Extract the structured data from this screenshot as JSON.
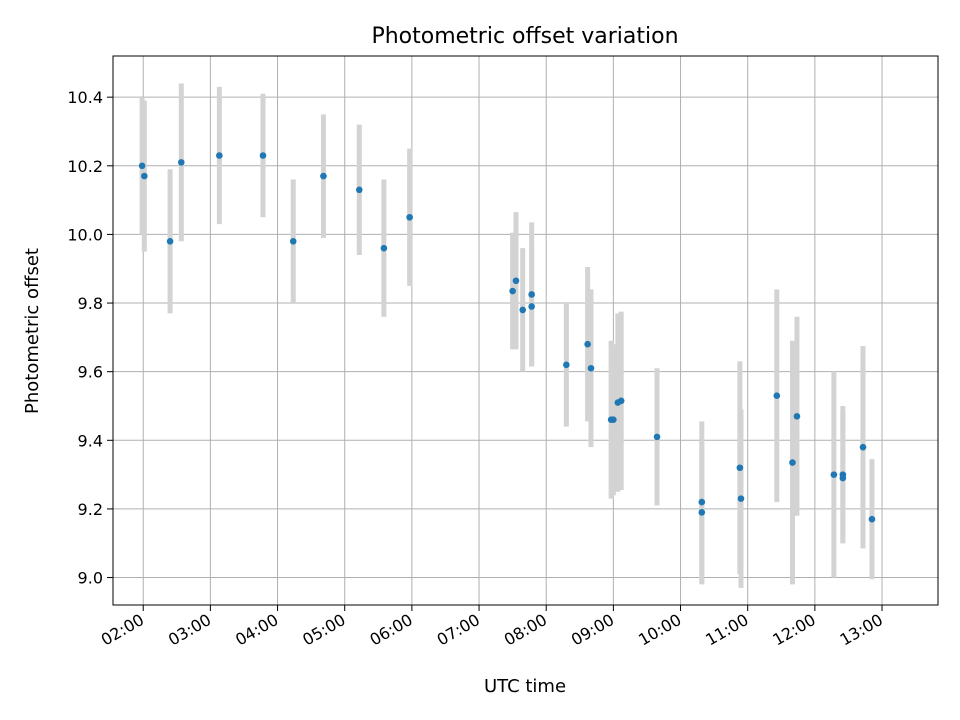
{
  "chart_data": {
    "type": "scatter",
    "title": "Photometric offset variation",
    "xlabel": "UTC time",
    "ylabel": "Photometric offset",
    "xlim": [
      "01:33",
      "13:50"
    ],
    "ylim": [
      8.92,
      10.52
    ],
    "grid": true,
    "x_ticks": [
      "02:00",
      "03:00",
      "04:00",
      "05:00",
      "06:00",
      "07:00",
      "08:00",
      "09:00",
      "10:00",
      "11:00",
      "12:00",
      "13:00"
    ],
    "y_ticks": [
      "9.0",
      "9.2",
      "9.4",
      "9.6",
      "9.8",
      "10.0",
      "10.2",
      "10.4"
    ],
    "marker_color": "#1f77b4",
    "errorbar_color": "#d3d3d3",
    "points": [
      {
        "t": "01:59",
        "y": 10.2,
        "err": 0.2
      },
      {
        "t": "02:01",
        "y": 10.17,
        "err": 0.22
      },
      {
        "t": "02:24",
        "y": 9.98,
        "err": 0.21
      },
      {
        "t": "02:34",
        "y": 10.21,
        "err": 0.23
      },
      {
        "t": "03:08",
        "y": 10.23,
        "err": 0.2
      },
      {
        "t": "03:47",
        "y": 10.23,
        "err": 0.18
      },
      {
        "t": "04:14",
        "y": 9.98,
        "err": 0.18
      },
      {
        "t": "04:41",
        "y": 10.17,
        "err": 0.18
      },
      {
        "t": "05:13",
        "y": 10.13,
        "err": 0.19
      },
      {
        "t": "05:35",
        "y": 9.96,
        "err": 0.2
      },
      {
        "t": "05:58",
        "y": 10.05,
        "err": 0.2
      },
      {
        "t": "07:30",
        "y": 9.835,
        "err": 0.17
      },
      {
        "t": "07:33",
        "y": 9.865,
        "err": 0.2
      },
      {
        "t": "07:39",
        "y": 9.78,
        "err": 0.18
      },
      {
        "t": "07:47",
        "y": 9.825,
        "err": 0.21
      },
      {
        "t": "07:47",
        "y": 9.79,
        "err": 0.175
      },
      {
        "t": "08:18",
        "y": 9.62,
        "err": 0.18
      },
      {
        "t": "08:37",
        "y": 9.68,
        "err": 0.225
      },
      {
        "t": "08:40",
        "y": 9.61,
        "err": 0.23
      },
      {
        "t": "08:58",
        "y": 9.46,
        "err": 0.23
      },
      {
        "t": "09:00",
        "y": 9.46,
        "err": 0.22
      },
      {
        "t": "09:04",
        "y": 9.51,
        "err": 0.26
      },
      {
        "t": "09:07",
        "y": 9.515,
        "err": 0.26
      },
      {
        "t": "09:39",
        "y": 9.41,
        "err": 0.2
      },
      {
        "t": "10:19",
        "y": 9.22,
        "err": 0.235
      },
      {
        "t": "10:19",
        "y": 9.19,
        "err": 0.21
      },
      {
        "t": "10:53",
        "y": 9.32,
        "err": 0.31
      },
      {
        "t": "10:54",
        "y": 9.23,
        "err": 0.26
      },
      {
        "t": "11:26",
        "y": 9.53,
        "err": 0.31
      },
      {
        "t": "11:40",
        "y": 9.335,
        "err": 0.355
      },
      {
        "t": "11:44",
        "y": 9.47,
        "err": 0.29
      },
      {
        "t": "12:17",
        "y": 9.3,
        "err": 0.3
      },
      {
        "t": "12:25",
        "y": 9.3,
        "err": 0.2
      },
      {
        "t": "12:25",
        "y": 9.29,
        "err": 0.19
      },
      {
        "t": "12:43",
        "y": 9.38,
        "err": 0.295
      },
      {
        "t": "12:51",
        "y": 9.17,
        "err": 0.175
      }
    ]
  }
}
